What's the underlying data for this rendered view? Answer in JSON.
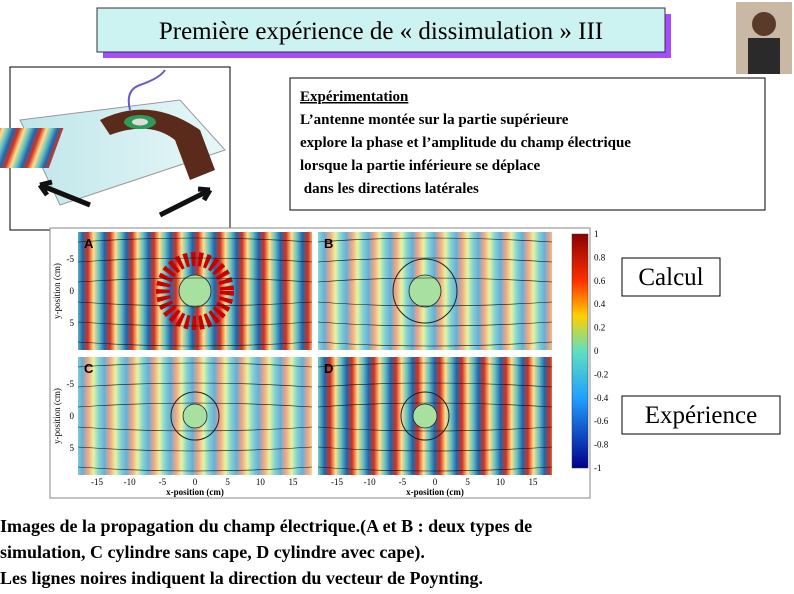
{
  "title": "Première expérience de « dissimulation » III",
  "box": {
    "heading": "Expérimentation",
    "lines": [
      "L’antenne montée sur la partie supérieure",
      "explore la phase et l’amplitude du champ électrique",
      "lorsque la partie inférieure se déplace",
      " dans les directions latérales"
    ]
  },
  "figure": {
    "panels": [
      "A",
      "B",
      "C",
      "D"
    ],
    "x_ticks": [
      "-15",
      "-10",
      "-5",
      "0",
      "5",
      "10",
      "15"
    ],
    "y_ticks": [
      "-5",
      "0",
      "5"
    ],
    "x_label": "x-position (cm)",
    "y_label": "y-position (cm)",
    "colorbar_ticks": [
      "1",
      "0.8",
      "0.6",
      "0.4",
      "0.2",
      "0",
      "-0.2",
      "-0.4",
      "-0.6",
      "-0.8",
      "-1"
    ]
  },
  "labels": [
    "Calcul",
    "Expérience"
  ],
  "caption": [
    "Images de la propagation du champ électrique.(A et B : deux types de",
    "simulation, C cylindre sans cape, D cylindre avec cape).",
    "Les lignes noires indiquent la direction du vecteur de Poynting."
  ]
}
